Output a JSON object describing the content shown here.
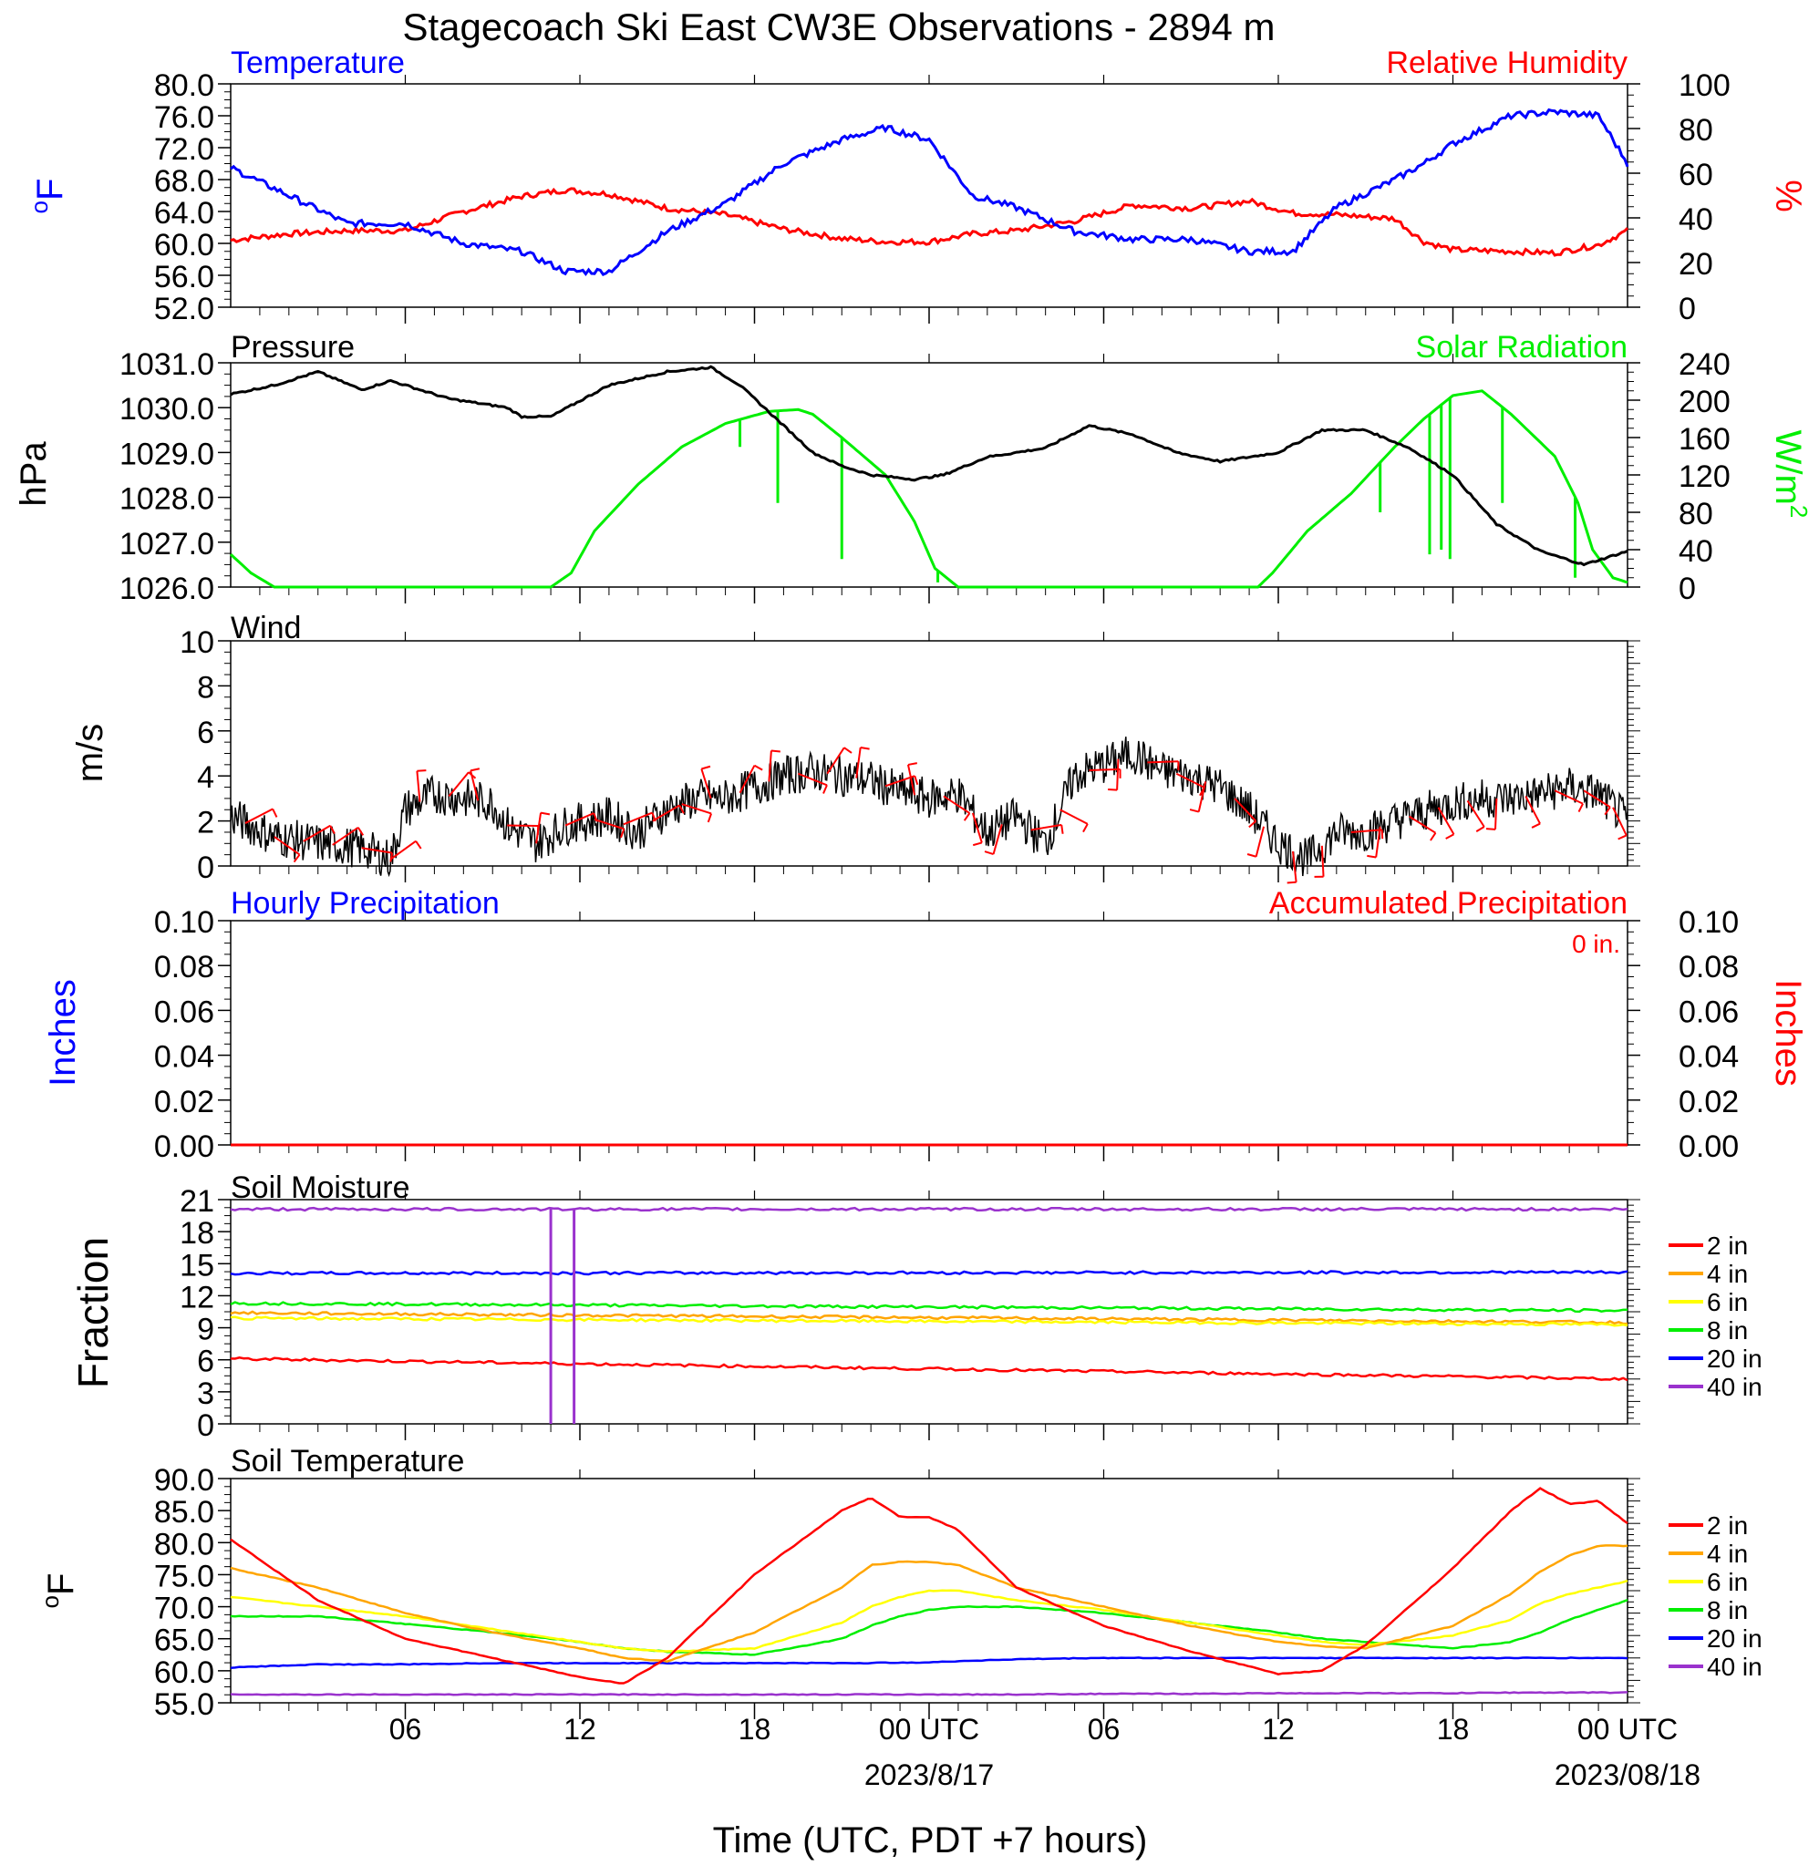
{
  "title": "Stagecoach Ski East CW3E Observations - 2894 m",
  "x_axis": {
    "label": "Time (UTC, PDT +7 hours)",
    "ticks": [
      "06",
      "12",
      "18",
      "00 UTC",
      "06",
      "12",
      "18",
      "00 UTC"
    ],
    "dates": [
      "2023/8/17",
      "2023/08/18"
    ]
  },
  "colors": {
    "blue": "#0000ff",
    "red": "#ff0000",
    "green": "#00ee00",
    "black": "#000000",
    "orange": "#ffa500",
    "yellow": "#ffff00",
    "purple": "#9a32cd"
  },
  "chart_data": [
    {
      "type": "line",
      "left_title": "Temperature",
      "right_title": "Relative Humidity",
      "ylabel_left": "oF",
      "ylabel_right": "%",
      "ylim_left": [
        52,
        80
      ],
      "ylim_right": [
        0,
        100
      ],
      "yticks_left": [
        "80.0",
        "76.0",
        "72.0",
        "68.0",
        "64.0",
        "60.0",
        "56.0",
        "52.0"
      ],
      "yticks_right": [
        "100",
        "80",
        "60",
        "40",
        "20",
        "0"
      ],
      "x_hours": [
        0,
        2,
        4,
        6,
        8,
        10,
        11.5,
        13,
        15,
        17,
        19,
        21,
        22.5,
        24,
        25.5,
        27,
        29,
        31,
        33,
        35,
        36.5,
        38,
        40,
        41,
        42,
        44,
        45.5,
        47,
        48
      ],
      "series": [
        {
          "name": "Temperature",
          "axis": "left",
          "color": "#0000ff",
          "values": [
            69.5,
            66,
            62.5,
            62.5,
            60,
            59,
            56.5,
            56.5,
            61.5,
            65,
            70,
            73,
            74.5,
            73,
            66,
            64.5,
            61.5,
            60.5,
            60.5,
            59,
            59,
            64.5,
            68,
            70,
            72.5,
            76,
            76.5,
            76,
            70
          ]
        },
        {
          "name": "Relative Humidity",
          "axis": "left",
          "color": "#ff0000",
          "values": [
            60.4,
            61.2,
            61.6,
            61.6,
            64,
            65.9,
            66.7,
            66.2,
            64.4,
            63.6,
            61.8,
            60.6,
            60.2,
            60.2,
            61.2,
            61.6,
            62.8,
            64.8,
            64.4,
            65.3,
            63.8,
            63.6,
            63.1,
            60.2,
            59.2,
            59,
            58.8,
            59.8,
            61.6
          ]
        }
      ]
    },
    {
      "type": "line",
      "left_title": "Pressure",
      "right_title": "Solar Radiation",
      "ylabel_left": "hPa",
      "ylabel_right": "W/m2",
      "ylim_left": [
        1026,
        1031
      ],
      "ylim_right": [
        0,
        240
      ],
      "yticks_left": [
        "1031.0",
        "1030.0",
        "1029.0",
        "1028.0",
        "1027.0",
        "1026.0"
      ],
      "yticks_right": [
        "240",
        "200",
        "160",
        "120",
        "80",
        "40",
        "0"
      ],
      "x_hours": [
        0,
        1.5,
        3,
        4.5,
        5.5,
        7.5,
        9.5,
        10,
        11,
        13,
        15,
        16.5,
        17.5,
        19,
        20,
        21,
        22,
        23.5,
        24.5,
        26,
        28,
        29.5,
        31,
        32.5,
        34,
        36,
        37.5,
        39,
        40.5,
        42,
        43.5,
        45,
        46.5,
        48
      ],
      "series": [
        {
          "name": "Pressure",
          "axis": "left",
          "color": "#000000",
          "values": [
            1030.3,
            1030.5,
            1030.8,
            1030.4,
            1030.6,
            1030.2,
            1030.0,
            1029.8,
            1029.8,
            1030.5,
            1030.8,
            1030.9,
            1030.5,
            1029.6,
            1029.0,
            1028.7,
            1028.5,
            1028.4,
            1028.5,
            1028.9,
            1029.1,
            1029.6,
            1029.4,
            1029.0,
            1028.8,
            1029.0,
            1029.5,
            1029.5,
            1029.1,
            1028.5,
            1027.4,
            1026.8,
            1026.5,
            1026.8
          ]
        },
        {
          "name": "Solar Radiation",
          "axis": "right",
          "color": "#00ee00",
          "x_hours": [
            0,
            0.7,
            1.5,
            6,
            11,
            11.7,
            12.5,
            14,
            15.5,
            17,
            18.5,
            19.5,
            20,
            21,
            22.5,
            23.5,
            24.2,
            24.8,
            25,
            30,
            35.3,
            35.8,
            37,
            38.5,
            40,
            41,
            42,
            43,
            44,
            45.5,
            46.3,
            46.8,
            47.5,
            48
          ],
          "values": [
            35,
            15,
            0,
            0,
            0,
            15,
            60,
            110,
            150,
            175,
            188,
            190,
            185,
            160,
            120,
            70,
            20,
            5,
            0,
            0,
            0,
            15,
            60,
            100,
            150,
            180,
            205,
            210,
            185,
            140,
            90,
            40,
            10,
            5
          ]
        }
      ]
    },
    {
      "type": "line",
      "left_title": "Wind",
      "ylabel_left": "m/s",
      "ylim": [
        0,
        10
      ],
      "yticks": [
        "10",
        "8",
        "6",
        "4",
        "2",
        "0"
      ],
      "x_hours": [
        0,
        1.5,
        3,
        4.5,
        5.5,
        6,
        7,
        8,
        9,
        9.5,
        10.5,
        11.5,
        13,
        14,
        15,
        16,
        17,
        18,
        19,
        20,
        21,
        22,
        23,
        24,
        25,
        26,
        27,
        28,
        29,
        30,
        31,
        32,
        33,
        34,
        35,
        36,
        37,
        38,
        39,
        40,
        41,
        42,
        43,
        44,
        45,
        46,
        47,
        48
      ],
      "series": [
        {
          "name": "Wind Speed",
          "color": "#000000",
          "values": [
            2.2,
            1.3,
            1,
            0.8,
            0.3,
            2.5,
            3.2,
            3,
            2.8,
            1.8,
            1,
            1.8,
            2.2,
            1.5,
            2.5,
            3,
            3,
            3.5,
            4,
            4.2,
            4,
            3.8,
            3.3,
            3,
            3.2,
            1.5,
            2.2,
            1,
            4,
            4.5,
            5,
            4.2,
            4,
            3.5,
            2.5,
            1,
            0.3,
            1.5,
            1.5,
            2,
            2.4,
            2.8,
            3,
            3,
            3.2,
            3.5,
            3.2,
            2
          ]
        }
      ]
    },
    {
      "type": "line",
      "left_title": "Hourly Precipitation",
      "right_title": "Accumulated Precipitation",
      "annotation": "0 in.",
      "ylabel_left": "Inches",
      "ylabel_right": "Inches",
      "ylim": [
        0,
        0.1
      ],
      "yticks": [
        "0.10",
        "0.08",
        "0.06",
        "0.04",
        "0.02",
        "0.00"
      ],
      "x_hours": [
        0,
        48
      ],
      "series": [
        {
          "name": "Hourly Precipitation",
          "color": "#0000ff",
          "values": [
            0,
            0
          ]
        },
        {
          "name": "Accumulated Precipitation",
          "color": "#ff0000",
          "values": [
            0,
            0
          ]
        }
      ]
    },
    {
      "type": "line",
      "left_title": "Soil Moisture",
      "ylabel_left": "Fraction",
      "ylim": [
        0,
        21
      ],
      "yticks": [
        "21",
        "18",
        "15",
        "12",
        "9",
        "6",
        "3",
        "0"
      ],
      "x_hours": [
        0,
        48
      ],
      "series": [
        {
          "name": "2 in",
          "color": "#ff0000",
          "values": [
            6.1,
            4.2
          ]
        },
        {
          "name": "4 in",
          "color": "#ffa500",
          "values": [
            10.4,
            9.5
          ]
        },
        {
          "name": "6 in",
          "color": "#ffff00",
          "values": [
            9.9,
            9.3
          ]
        },
        {
          "name": "8 in",
          "color": "#00ee00",
          "values": [
            11.3,
            10.6
          ]
        },
        {
          "name": "20 in",
          "color": "#0000ff",
          "values": [
            14.1,
            14.2
          ]
        },
        {
          "name": "40 in",
          "color": "#9a32cd",
          "values": [
            20.1,
            20.1
          ]
        }
      ]
    },
    {
      "type": "line",
      "left_title": "Soil Temperature",
      "ylabel_left": "oF",
      "ylim": [
        55,
        90
      ],
      "yticks": [
        "90.0",
        "85.0",
        "80.0",
        "75.0",
        "70.0",
        "65.0",
        "60.0",
        "55.0"
      ],
      "x_hours": [
        0,
        3,
        6,
        9,
        12,
        13.5,
        15,
        18,
        21,
        22,
        23,
        24,
        25,
        27,
        30,
        33,
        36,
        37.5,
        39,
        42,
        44,
        45,
        46,
        47,
        48
      ],
      "series": [
        {
          "name": "2 in",
          "color": "#ff0000",
          "values": [
            80.5,
            71,
            65,
            62,
            59,
            58,
            62,
            75,
            85,
            87,
            84,
            84,
            82,
            73,
            67,
            63,
            59.5,
            60,
            64,
            76,
            85,
            88.5,
            86,
            86.5,
            83
          ]
        },
        {
          "name": "4 in",
          "color": "#ffa500",
          "values": [
            76,
            73,
            69,
            66,
            63.5,
            62,
            61.5,
            66,
            73,
            76.5,
            77,
            77,
            76.5,
            73,
            70,
            67,
            64.5,
            63.8,
            63.5,
            67,
            72,
            75.5,
            78,
            79.5,
            79.5
          ]
        },
        {
          "name": "6 in",
          "color": "#ffff00",
          "values": [
            71.5,
            70,
            68.5,
            66.5,
            64.5,
            63.5,
            63,
            63.5,
            67.5,
            70,
            71.5,
            72.5,
            72.5,
            71,
            69.5,
            67.5,
            65.5,
            64.5,
            64,
            65.5,
            68,
            70.5,
            72,
            73,
            74
          ]
        },
        {
          "name": "8 in",
          "color": "#00ee00",
          "values": [
            68.5,
            68.5,
            67.3,
            66,
            64.5,
            63.5,
            63,
            62.5,
            65,
            67,
            68.5,
            69.5,
            70,
            70,
            69,
            67.5,
            66,
            65,
            64.5,
            63.5,
            64.5,
            66,
            68,
            69.5,
            71
          ]
        },
        {
          "name": "20 in",
          "color": "#0000ff",
          "values": [
            60.5,
            61,
            61,
            61.2,
            61.2,
            61.2,
            61.2,
            61.2,
            61.2,
            61.2,
            61.3,
            61.3,
            61.5,
            61.8,
            62,
            62,
            62,
            62,
            62,
            62,
            62,
            62,
            62,
            62,
            62
          ]
        },
        {
          "name": "40 in",
          "color": "#9a32cd",
          "values": [
            56.3,
            56.3,
            56.3,
            56.3,
            56.3,
            56.3,
            56.3,
            56.3,
            56.3,
            56.3,
            56.3,
            56.3,
            56.3,
            56.3,
            56.4,
            56.4,
            56.5,
            56.5,
            56.5,
            56.5,
            56.6,
            56.6,
            56.6,
            56.6,
            56.6
          ]
        }
      ]
    }
  ]
}
